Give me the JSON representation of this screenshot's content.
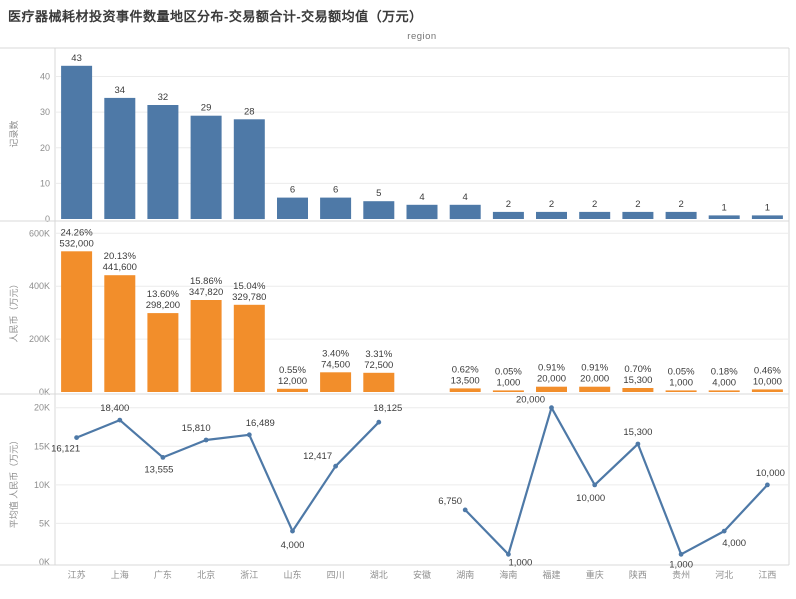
{
  "title": "医疗器械耗材投资事件数量地区分布-交易额合计-交易额均值（万元）",
  "region_label": "region",
  "colors": {
    "bar_blue": "#4e79a7",
    "bar_orange": "#f28e2b",
    "line_blue": "#4e79a7",
    "grid": "#ececec",
    "frame": "#d9d9d9",
    "tick_text": "#8e8e8e",
    "value_text": "#3b3b3b",
    "title_text": "#3a3a3a"
  },
  "categories": [
    "江苏",
    "上海",
    "广东",
    "北京",
    "浙江",
    "山东",
    "四川",
    "湖北",
    "安徽",
    "湖南",
    "海南",
    "福建",
    "重庆",
    "陕西",
    "贵州",
    "河北",
    "江西"
  ],
  "chart_data": [
    {
      "type": "bar",
      "ylabel": "记录数",
      "xlabel": "region",
      "categories": [
        "江苏",
        "上海",
        "广东",
        "北京",
        "浙江",
        "山东",
        "四川",
        "湖北",
        "安徽",
        "湖南",
        "海南",
        "福建",
        "重庆",
        "陕西",
        "贵州",
        "河北",
        "江西"
      ],
      "values": [
        43,
        34,
        32,
        29,
        28,
        6,
        6,
        5,
        4,
        4,
        2,
        2,
        2,
        2,
        2,
        1,
        1
      ],
      "value_labels": [
        "43",
        "34",
        "32",
        "29",
        "28",
        "6",
        "6",
        "5",
        "4",
        "4",
        "2",
        "2",
        "2",
        "2",
        "2",
        "1",
        "1"
      ],
      "yticks": [
        0,
        10,
        20,
        30,
        40
      ],
      "ytick_labels": [
        "0",
        "10",
        "20",
        "30",
        "40"
      ],
      "ylim": [
        0,
        48
      ],
      "grid": true,
      "color": "#4e79a7"
    },
    {
      "type": "bar",
      "ylabel": "人民币（万元）",
      "xlabel": "region",
      "categories": [
        "江苏",
        "上海",
        "广东",
        "北京",
        "浙江",
        "山东",
        "四川",
        "湖北",
        "安徽",
        "湖南",
        "海南",
        "福建",
        "重庆",
        "陕西",
        "贵州",
        "河北",
        "江西"
      ],
      "values": [
        532000,
        441600,
        298200,
        347820,
        329780,
        12000,
        74500,
        72500,
        null,
        13500,
        1000,
        20000,
        20000,
        15300,
        1000,
        4000,
        10000
      ],
      "value_labels": [
        "532,000",
        "441,600",
        "298,200",
        "347,820",
        "329,780",
        "12,000",
        "74,500",
        "72,500",
        null,
        "13,500",
        "1,000",
        "20,000",
        "20,000",
        "15,300",
        "1,000",
        "4,000",
        "10,000"
      ],
      "pct_labels": [
        "24.26%",
        "20.13%",
        "13.60%",
        "15.86%",
        "15.04%",
        "0.55%",
        "3.40%",
        "3.31%",
        null,
        "0.62%",
        "0.05%",
        "0.91%",
        "0.91%",
        "0.70%",
        "0.05%",
        "0.18%",
        "0.46%"
      ],
      "yticks": [
        0,
        200000,
        400000,
        600000
      ],
      "ytick_labels": [
        "0K",
        "200K",
        "400K",
        "600K"
      ],
      "ylim": [
        0,
        620000
      ],
      "grid": true,
      "color": "#f28e2b"
    },
    {
      "type": "line",
      "ylabel": "平均值 人民币（万元）",
      "xlabel": "region",
      "categories": [
        "江苏",
        "上海",
        "广东",
        "北京",
        "浙江",
        "山东",
        "四川",
        "湖北",
        "安徽",
        "湖南",
        "海南",
        "福建",
        "重庆",
        "陕西",
        "贵州",
        "河北",
        "江西"
      ],
      "values": [
        16121,
        18400,
        13555,
        15810,
        16489,
        4000,
        12417,
        18125,
        null,
        6750,
        1000,
        20000,
        10000,
        15300,
        1000,
        4000,
        10000
      ],
      "value_labels": [
        "16,121",
        "18,400",
        "13,555",
        "15,810",
        "16,489",
        "4,000",
        "12,417",
        "18,125",
        null,
        "6,750",
        "1,000",
        "20,000",
        "10,000",
        "15,300",
        "1,000",
        "4,000",
        "10,000"
      ],
      "label_offsets": [
        [
          -11,
          14
        ],
        [
          -5,
          -9
        ],
        [
          -4,
          15
        ],
        [
          -10,
          -9
        ],
        [
          11,
          -9
        ],
        [
          0,
          17
        ],
        [
          -18,
          -7
        ],
        [
          9,
          -11
        ],
        null,
        [
          -15,
          -6
        ],
        [
          12,
          11
        ],
        [
          -21,
          -5
        ],
        [
          -4,
          16
        ],
        [
          0,
          -9
        ],
        [
          0,
          13
        ],
        [
          10,
          15
        ],
        [
          3,
          -9
        ]
      ],
      "yticks": [
        0,
        5000,
        10000,
        15000,
        20000
      ],
      "ytick_labels": [
        "0K",
        "5K",
        "10K",
        "15K",
        "20K"
      ],
      "ylim": [
        0,
        21000
      ],
      "grid": true,
      "color": "#4e79a7"
    }
  ]
}
